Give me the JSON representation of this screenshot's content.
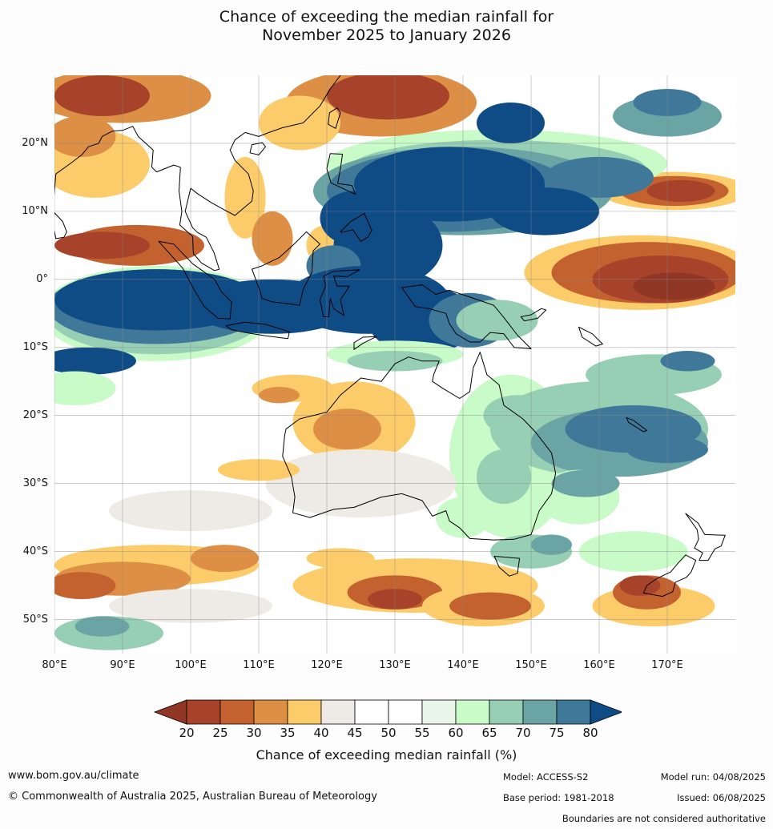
{
  "title": {
    "line1": "Chance of exceeding the median rainfall for",
    "line2": "November 2025 to January 2026"
  },
  "map": {
    "lon_range": [
      80,
      180
    ],
    "lat_range": [
      -55,
      30
    ],
    "lat_labels": [
      "20°N",
      "10°N",
      "0°",
      "10°S",
      "20°S",
      "30°S",
      "40°S",
      "50°S"
    ],
    "lat_values": [
      20,
      10,
      0,
      -10,
      -20,
      -30,
      -40,
      -50
    ],
    "lon_labels": [
      "80°E",
      "90°E",
      "100°E",
      "110°E",
      "120°E",
      "130°E",
      "140°E",
      "150°E",
      "160°E",
      "170°E"
    ],
    "lon_values": [
      80,
      90,
      100,
      110,
      120,
      130,
      140,
      150,
      160,
      170
    ]
  },
  "colorbar": {
    "levels": [
      "20",
      "25",
      "30",
      "35",
      "40",
      "45",
      "50",
      "55",
      "60",
      "65",
      "70",
      "75",
      "80"
    ],
    "colors": [
      "#a6432a",
      "#c4622f",
      "#dd8f45",
      "#fdcc6a",
      "#eeebe6",
      "#ffffff",
      "#ffffff",
      "#e8f5e8",
      "#c8fbc8",
      "#96cfb4",
      "#6aa4a4",
      "#3f7899"
    ],
    "under_color": "#8f3624",
    "over_color": "#0f4b85",
    "label": "Chance of exceeding median rainfall (%)"
  },
  "footer": {
    "website": "www.bom.gov.au/climate",
    "copyright": "© Commonwealth of Australia 2025, Australian Bureau of Meteorology",
    "model": "Model: ACCESS-S2",
    "base_period": "Base period: 1981-2018",
    "model_run": "Model run: 04/08/2025",
    "issued": "Issued: 06/08/2025",
    "boundaries_note": "Boundaries are not considered authoritative"
  }
}
